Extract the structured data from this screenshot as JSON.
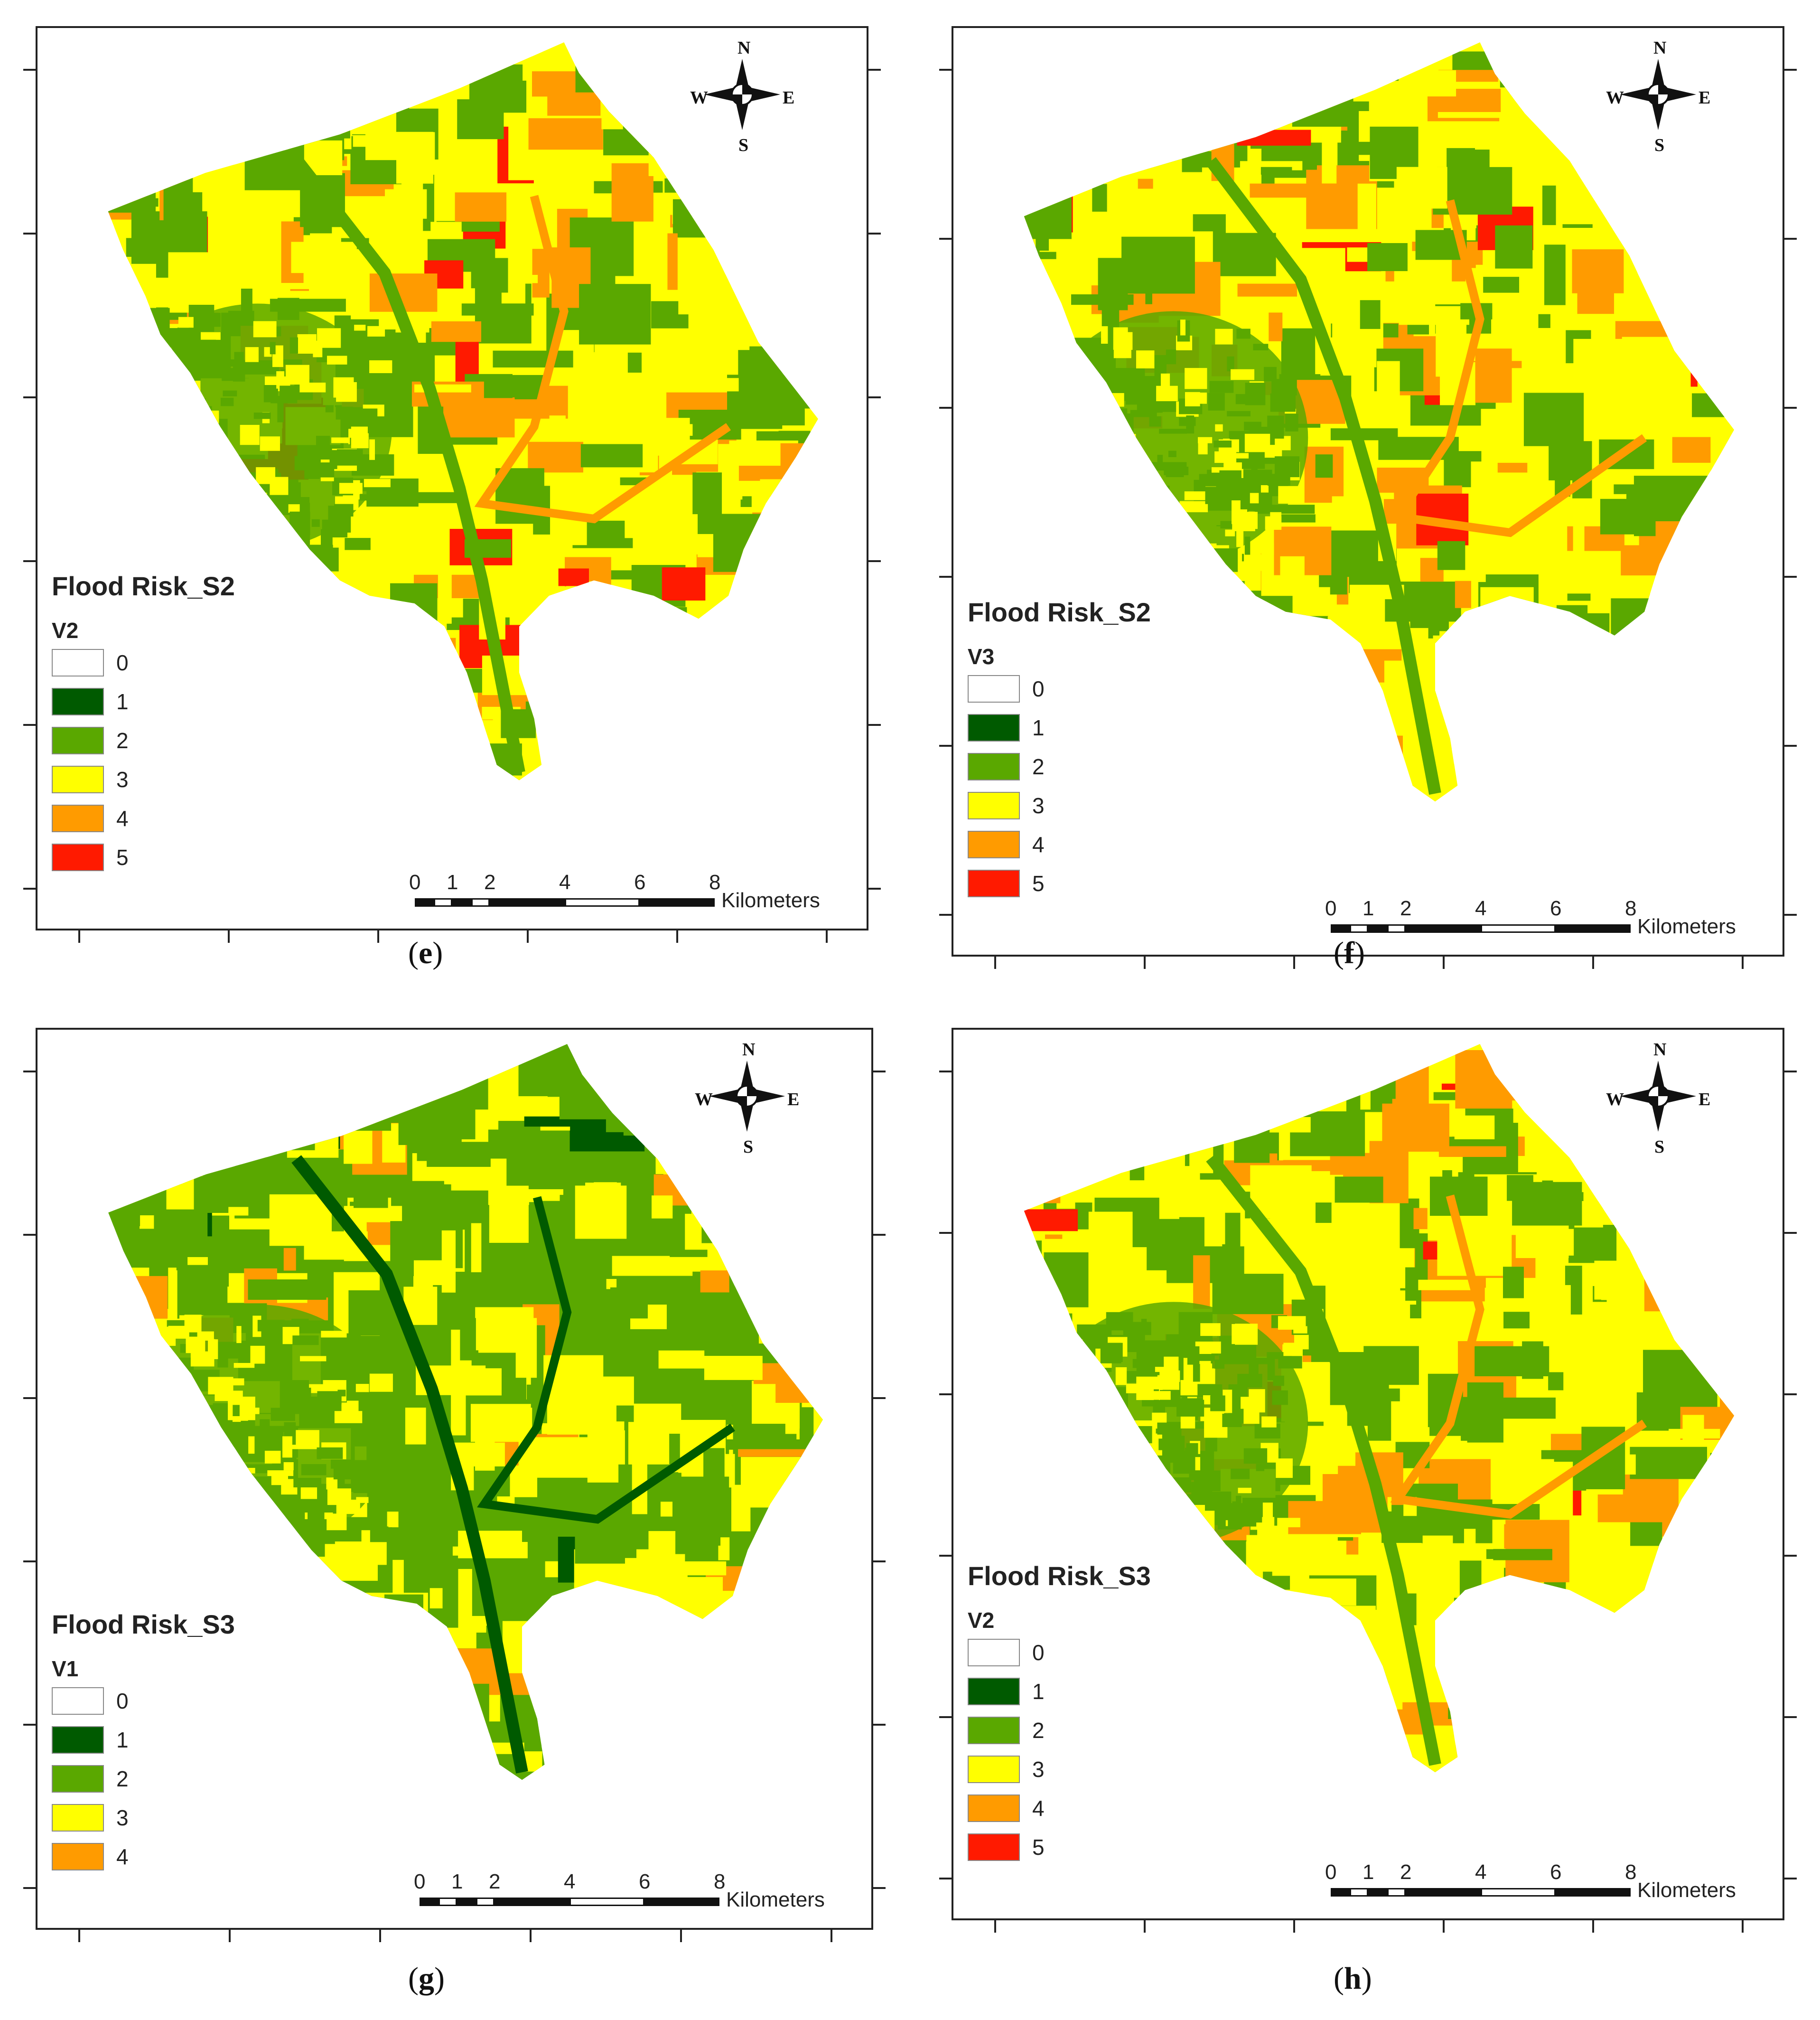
{
  "colors": {
    "c0": "#ffffff",
    "c1": "#005a00",
    "c2": "#5aa800",
    "c3": "#ffff00",
    "c4": "#ff9b00",
    "c5": "#ff1a00"
  },
  "scale": {
    "ticks": [
      "0",
      "1",
      "2",
      "4",
      "6",
      "8"
    ],
    "unit": "Kilometers"
  },
  "compass": {
    "n": "N",
    "s": "S",
    "e": "E",
    "w": "W"
  },
  "panels": [
    {
      "id": "e",
      "title": "Flood Risk_S2",
      "variable": "V2",
      "caption_open": "(",
      "caption_letter": "e",
      "caption_close": ")",
      "classes": [
        "0",
        "1",
        "2",
        "3",
        "4",
        "5"
      ]
    },
    {
      "id": "f",
      "title": "Flood Risk_S2",
      "variable": "V3",
      "caption_open": "(",
      "caption_letter": "f",
      "caption_close": ")",
      "classes": [
        "0",
        "1",
        "2",
        "3",
        "4",
        "5"
      ]
    },
    {
      "id": "g",
      "title": "Flood Risk_S3",
      "variable": "V1",
      "caption_open": "(",
      "caption_letter": "g",
      "caption_close": ")",
      "classes": [
        "0",
        "1",
        "2",
        "3",
        "4"
      ]
    },
    {
      "id": "h",
      "title": "Flood Risk_S3",
      "variable": "V2",
      "caption_open": "(",
      "caption_letter": "h",
      "caption_close": ")",
      "classes": [
        "0",
        "1",
        "2",
        "3",
        "4",
        "5"
      ]
    }
  ]
}
